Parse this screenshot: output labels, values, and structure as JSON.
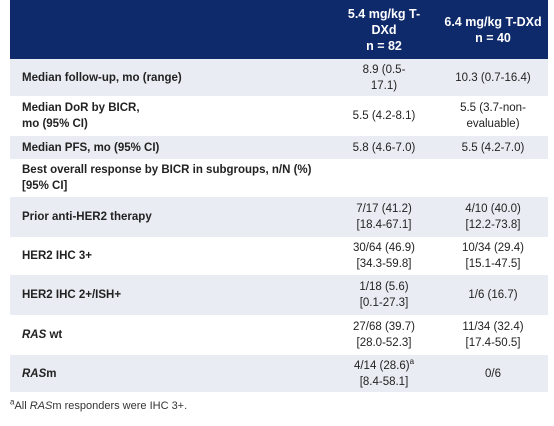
{
  "header": {
    "col1_line1": "5.4 mg/kg T-",
    "col1_line2": "DXd",
    "col1_n": "n = 82",
    "col2_line1": "6.4 mg/kg T-DXd",
    "col2_n": "n = 40"
  },
  "rows": {
    "followup": {
      "label": "Median follow-up, mo (range)",
      "c1a": "8.9 (0.5-",
      "c1b": "17.1)",
      "c2": "10.3 (0.7-16.4)"
    },
    "dor": {
      "label_a": "Median DoR by BICR,",
      "label_b": "mo (95% CI)",
      "c1": "5.5 (4.2-8.1)",
      "c2a": "5.5 (3.7-non-",
      "c2b": "evaluable)"
    },
    "pfs": {
      "label": "Median PFS, mo (95% CI)",
      "c1": "5.8 (4.6-7.0)",
      "c2": "5.5 (4.2-7.0)"
    },
    "bor": {
      "label_a": "Best overall response by BICR in subgroups, n/N (%)",
      "label_b": "[95% CI]"
    },
    "prior": {
      "label": "Prior anti-HER2 therapy",
      "c1a": "7/17 (41.2)",
      "c1b": "[18.4-67.1]",
      "c2a": "4/10 (40.0)",
      "c2b": "[12.2-73.8]"
    },
    "ihc3": {
      "label": "HER2 IHC 3+",
      "c1a": "30/64 (46.9)",
      "c1b": "[34.3-59.8]",
      "c2a": "10/34 (29.4)",
      "c2b": "[15.1-47.5]"
    },
    "ihc2": {
      "label": "HER2 IHC 2+/ISH+",
      "c1a": "1/18 (5.6)",
      "c1b": "[0.1-27.3]",
      "c2": "1/6 (16.7)"
    },
    "raswt": {
      "label_it": "RAS",
      "label_rest": " wt",
      "c1a": "27/68 (39.7)",
      "c1b": "[28.0-52.3]",
      "c2a": "11/34 (32.4)",
      "c2b": "[17.4-50.5]"
    },
    "rasm": {
      "label_it": "RAS",
      "label_rest": "m",
      "c1a": "4/14 (28.6)",
      "c1a_sup": "a",
      "c1b": "[8.4-58.1]",
      "c2": "0/6"
    }
  },
  "footnote": {
    "sup": "a",
    "pre": "All ",
    "it": "RAS",
    "post": "m responders were IHC 3+."
  }
}
